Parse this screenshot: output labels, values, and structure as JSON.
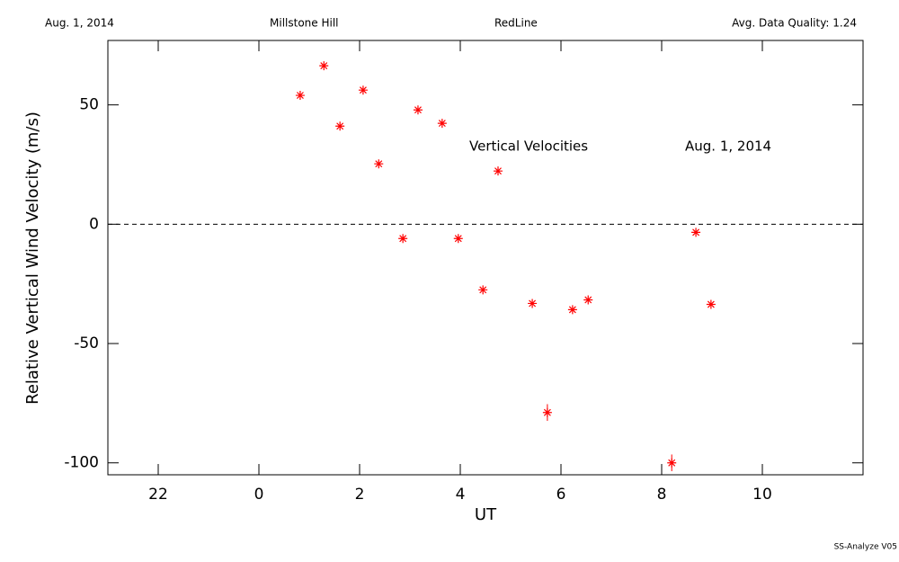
{
  "header": {
    "left": "Aug. 1, 2014",
    "site": "Millstone Hill",
    "line": "RedLine",
    "quality": "Avg. Data Quality: 1.24"
  },
  "footer": "SS-Analyze V05",
  "chart_data": {
    "type": "scatter",
    "xlabel": "UT",
    "ylabel": "Relative Vertical Wind Velocity (m/s)",
    "annotations": [
      "Vertical Velocities",
      "Aug. 1, 2014"
    ],
    "xlim": [
      -3,
      12
    ],
    "ylim": [
      -105,
      77
    ],
    "xticks": [
      {
        "value": -2,
        "label": "22"
      },
      0,
      2,
      4,
      6,
      8,
      10
    ],
    "yticks": [
      -100,
      -50,
      0,
      50
    ],
    "hline": 0,
    "color": "#ff0000",
    "x": [
      0.82,
      1.29,
      1.61,
      2.07,
      2.38,
      2.86,
      3.16,
      3.64,
      3.96,
      4.45,
      4.75,
      5.43,
      5.73,
      6.23,
      6.54,
      8.2,
      8.68,
      8.98
    ],
    "values": [
      54,
      66.4,
      41.1,
      56.2,
      25.3,
      -6,
      47.9,
      42.3,
      -6,
      -27.5,
      22.3,
      -33.2,
      -78.9,
      -35.8,
      -31.7,
      -100,
      -3.4,
      -33.6
    ],
    "errors": [
      0,
      0,
      0,
      0,
      0,
      0,
      0,
      0,
      0,
      0,
      0,
      0,
      3.5,
      0,
      0,
      3.5,
      0,
      0
    ]
  }
}
